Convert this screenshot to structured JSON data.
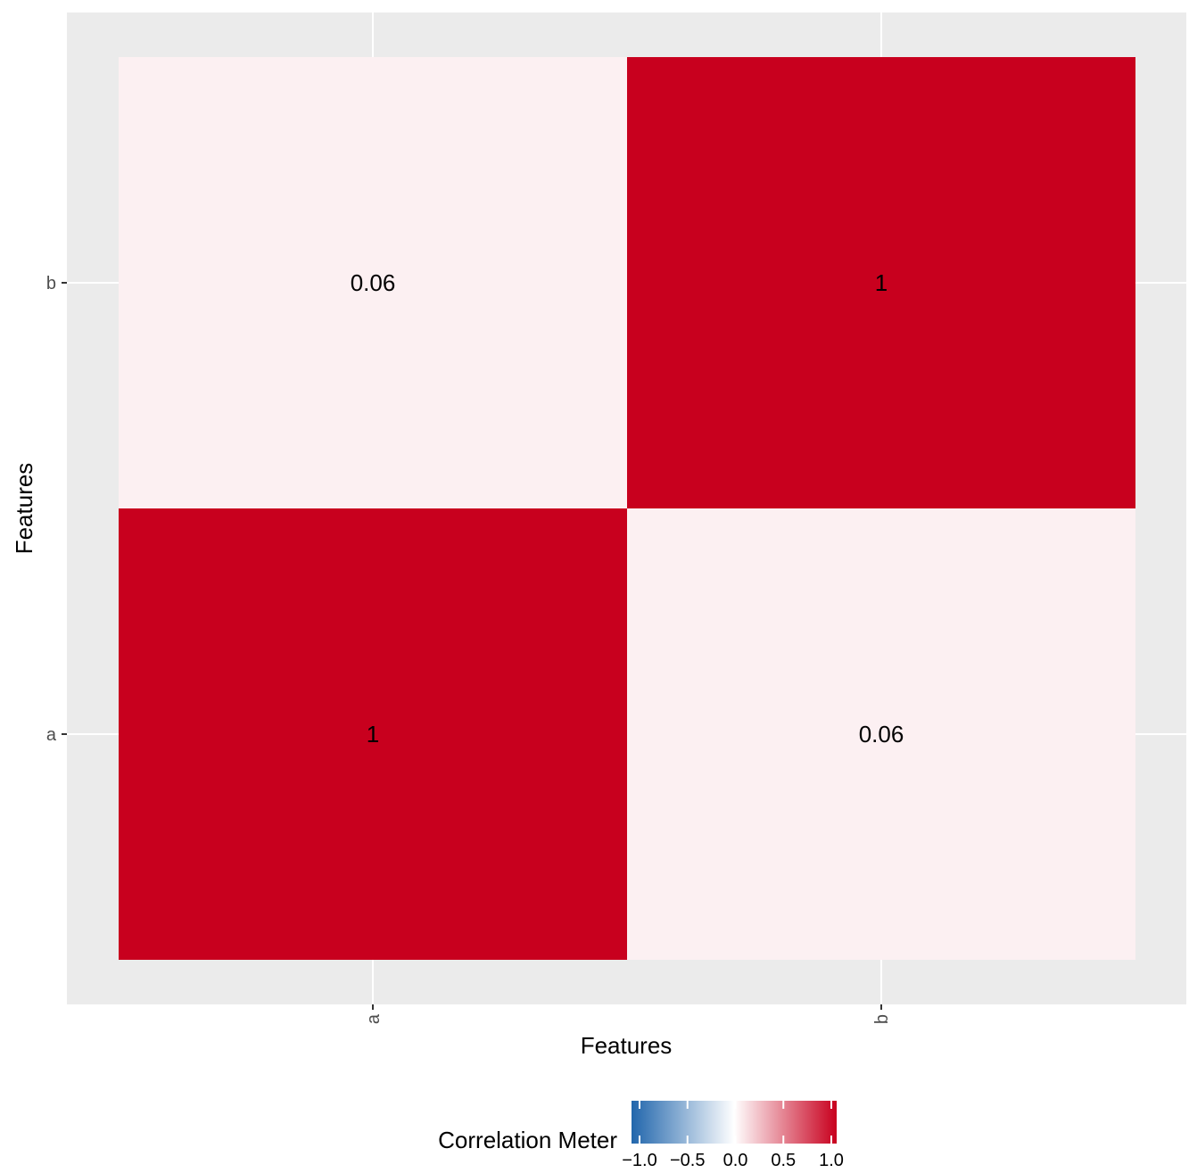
{
  "chart_data": {
    "type": "heatmap",
    "x_categories": [
      "a",
      "b"
    ],
    "y_categories": [
      "a",
      "b"
    ],
    "cells": [
      {
        "x": "a",
        "y": "a",
        "value": 1,
        "label": "1"
      },
      {
        "x": "b",
        "y": "a",
        "value": 0.06,
        "label": "0.06"
      },
      {
        "x": "a",
        "y": "b",
        "value": 0.06,
        "label": "0.06"
      },
      {
        "x": "b",
        "y": "b",
        "value": 1,
        "label": "1"
      }
    ],
    "xlabel": "Features",
    "ylabel": "Features",
    "legend": {
      "title": "Correlation Meter",
      "position": "bottom",
      "range": [
        -1,
        1
      ],
      "ticks": [
        -1,
        -0.5,
        0,
        0.5,
        1
      ],
      "tick_labels": [
        "−1.0",
        "−0.5",
        "0.0",
        "0.5",
        "1.0"
      ]
    },
    "colors": {
      "low": "#2166ac",
      "mid": "#ffffff",
      "high": "#c8001e",
      "panel_background": "#ebebeb",
      "grid": "#ffffff"
    },
    "grid": true
  }
}
